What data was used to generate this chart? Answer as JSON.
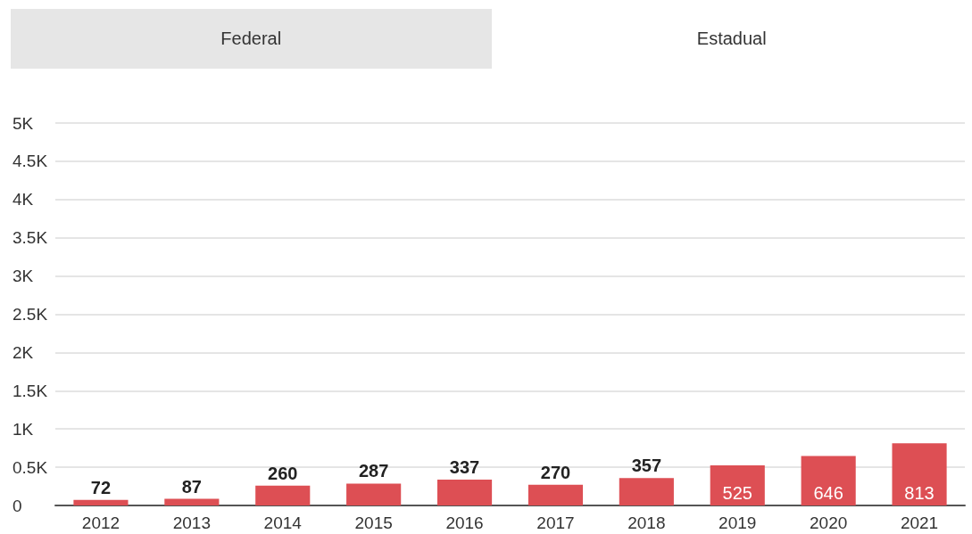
{
  "chart_data": {
    "type": "bar",
    "annotations": [
      "Federal",
      "Estadual"
    ],
    "categories": [
      "2012",
      "2013",
      "2014",
      "2015",
      "2016",
      "2017",
      "2018",
      "2019",
      "2020",
      "2021"
    ],
    "values": [
      72,
      87,
      260,
      287,
      337,
      270,
      357,
      525,
      646,
      813
    ],
    "color": "#dd4f54",
    "ylim": [
      0,
      5000
    ],
    "yticks": [
      0,
      {
        "value": 500,
        "label": "0.5K"
      },
      {
        "value": 1000,
        "label": "1K"
      },
      {
        "value": 1500,
        "label": "1.5K"
      },
      {
        "value": 2000,
        "label": "2K"
      },
      {
        "value": 2500,
        "label": "2.5K"
      },
      {
        "value": 3000,
        "label": "3K"
      },
      {
        "value": 3500,
        "label": "3.5K"
      },
      {
        "value": 4000,
        "label": "4K"
      },
      {
        "value": 4500,
        "label": "4.5K"
      },
      {
        "value": 5000,
        "label": "5K"
      }
    ],
    "grid": true,
    "data_labels": true
  }
}
